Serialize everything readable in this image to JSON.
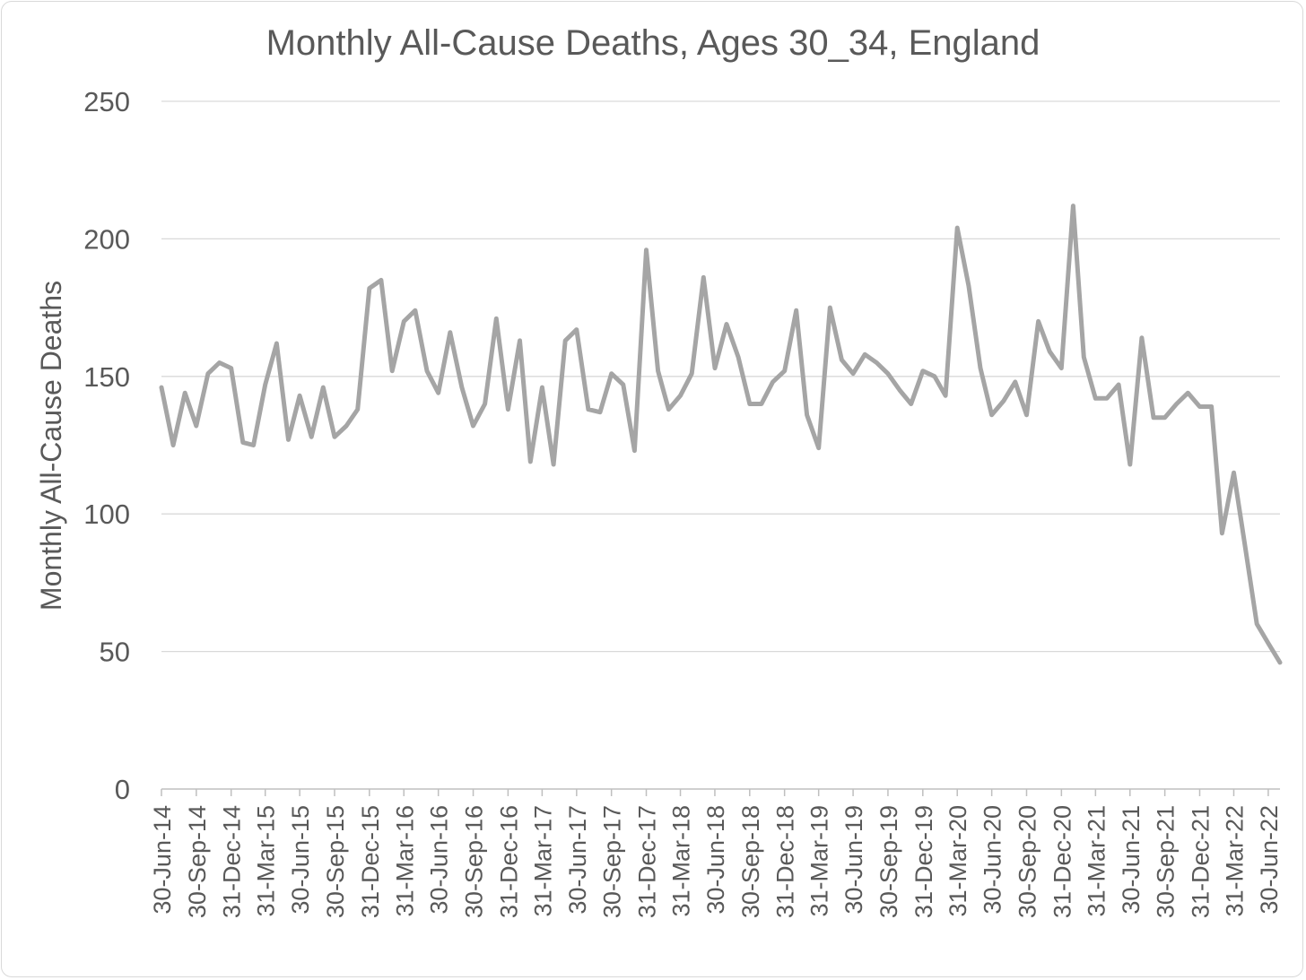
{
  "chart_data": {
    "type": "line",
    "title": "Monthly All-Cause Deaths, Ages 30_34, England",
    "xlabel": "",
    "ylabel": "Monthly All-Cause Deaths",
    "ylim": [
      0,
      250
    ],
    "yticks": [
      0,
      50,
      100,
      150,
      200,
      250
    ],
    "grid": true,
    "legend": "none",
    "line_color": "#a5a5a5",
    "x_tick_labels": [
      "30-Jun-14",
      "30-Sep-14",
      "31-Dec-14",
      "31-Mar-15",
      "30-Jun-15",
      "30-Sep-15",
      "31-Dec-15",
      "31-Mar-16",
      "30-Jun-16",
      "30-Sep-16",
      "31-Dec-16",
      "31-Mar-17",
      "30-Jun-17",
      "30-Sep-17",
      "31-Dec-17",
      "31-Mar-18",
      "30-Jun-18",
      "30-Sep-18",
      "31-Dec-18",
      "31-Mar-19",
      "30-Jun-19",
      "30-Sep-19",
      "31-Dec-19",
      "31-Mar-20",
      "30-Jun-20",
      "30-Sep-20",
      "31-Dec-20",
      "31-Mar-21",
      "30-Jun-21",
      "30-Sep-21",
      "31-Dec-21",
      "31-Mar-22",
      "30-Jun-22"
    ],
    "x": [
      "2014-06-30",
      "2014-07-31",
      "2014-08-31",
      "2014-09-30",
      "2014-10-31",
      "2014-11-30",
      "2014-12-31",
      "2015-01-31",
      "2015-02-28",
      "2015-03-31",
      "2015-04-30",
      "2015-05-31",
      "2015-06-30",
      "2015-07-31",
      "2015-08-31",
      "2015-09-30",
      "2015-10-31",
      "2015-11-30",
      "2015-12-31",
      "2016-01-31",
      "2016-02-29",
      "2016-03-31",
      "2016-04-30",
      "2016-05-31",
      "2016-06-30",
      "2016-07-31",
      "2016-08-31",
      "2016-09-30",
      "2016-10-31",
      "2016-11-30",
      "2016-12-31",
      "2017-01-31",
      "2017-02-28",
      "2017-03-31",
      "2017-04-30",
      "2017-05-31",
      "2017-06-30",
      "2017-07-31",
      "2017-08-31",
      "2017-09-30",
      "2017-10-31",
      "2017-11-30",
      "2017-12-31",
      "2018-01-31",
      "2018-02-28",
      "2018-03-31",
      "2018-04-30",
      "2018-05-31",
      "2018-06-30",
      "2018-07-31",
      "2018-08-31",
      "2018-09-30",
      "2018-10-31",
      "2018-11-30",
      "2018-12-31",
      "2019-01-31",
      "2019-02-28",
      "2019-03-31",
      "2019-04-30",
      "2019-05-31",
      "2019-06-30",
      "2019-07-31",
      "2019-08-31",
      "2019-09-30",
      "2019-10-31",
      "2019-11-30",
      "2019-12-31",
      "2020-01-31",
      "2020-02-29",
      "2020-03-31",
      "2020-04-30",
      "2020-05-31",
      "2020-06-30",
      "2020-07-31",
      "2020-08-31",
      "2020-09-30",
      "2020-10-31",
      "2020-11-30",
      "2020-12-31",
      "2021-01-31",
      "2021-02-28",
      "2021-03-31",
      "2021-04-30",
      "2021-05-31",
      "2021-06-30",
      "2021-07-31",
      "2021-08-31",
      "2021-09-30",
      "2021-10-31",
      "2021-11-30",
      "2021-12-31",
      "2022-01-31",
      "2022-02-28",
      "2022-03-31",
      "2022-04-30",
      "2022-05-31",
      "2022-06-30",
      "2022-07-31"
    ],
    "series": [
      {
        "values": [
          146,
          125,
          144,
          132,
          151,
          155,
          153,
          126,
          125,
          147,
          162,
          127,
          143,
          128,
          146,
          128,
          132,
          138,
          182,
          185,
          152,
          170,
          174,
          152,
          144,
          166,
          146,
          132,
          140,
          171,
          138,
          163,
          119,
          146,
          118,
          163,
          167,
          138,
          137,
          151,
          147,
          123,
          196,
          152,
          138,
          143,
          151,
          186,
          153,
          169,
          157,
          140,
          140,
          148,
          152,
          174,
          136,
          124,
          175,
          156,
          151,
          158,
          155,
          151,
          145,
          140,
          152,
          150,
          143,
          204,
          183,
          153,
          136,
          141,
          148,
          136,
          170,
          159,
          153,
          212,
          157,
          142,
          142,
          147,
          118,
          164,
          135,
          135,
          140,
          144,
          139,
          139,
          93,
          115,
          88,
          60,
          53,
          46
        ]
      }
    ]
  }
}
